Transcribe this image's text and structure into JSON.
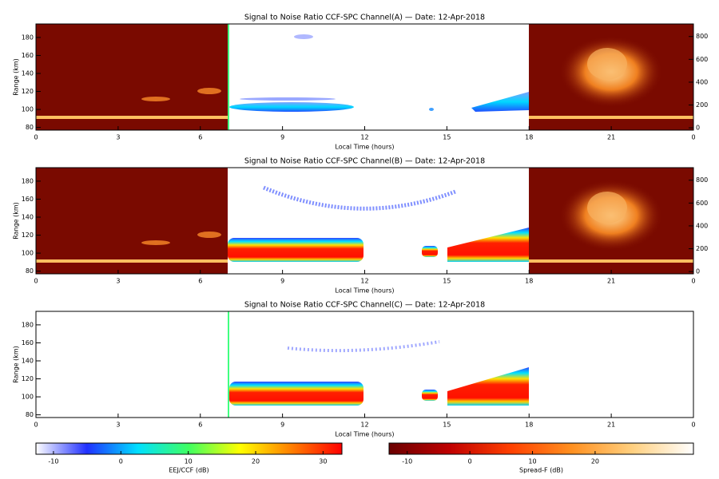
{
  "chart_data": [
    {
      "type": "heatmap",
      "title": "Signal to Noise Ratio CCF-SPC Channel(A) — Date: 12-Apr-2018",
      "x_label": "Local Time (hours)",
      "y_label": "Range (km)",
      "xlim": [
        0,
        24
      ],
      "xticks": [
        0,
        3,
        6,
        9,
        12,
        15,
        18,
        21,
        {
          "value": 24,
          "label": "0"
        }
      ],
      "ylim": [
        77,
        195
      ],
      "yticks": [
        80,
        100,
        120,
        140,
        160,
        180
      ],
      "y2lim": [
        -20,
        910
      ],
      "y2ticks": [
        0,
        200,
        400,
        600,
        800
      ]
    },
    {
      "type": "heatmap",
      "title": "Signal to Noise Ratio CCF-SPC Channel(B) — Date: 12-Apr-2018",
      "x_label": "Local Time (hours)",
      "y_label": "Range (km)",
      "xlim": [
        0,
        24
      ],
      "xticks": [
        0,
        3,
        6,
        9,
        12,
        15,
        18,
        21,
        {
          "value": 24,
          "label": "0"
        }
      ],
      "ylim": [
        77,
        195
      ],
      "yticks": [
        80,
        100,
        120,
        140,
        160,
        180
      ],
      "y2lim": [
        -20,
        910
      ],
      "y2ticks": [
        0,
        200,
        400,
        600,
        800
      ]
    },
    {
      "type": "heatmap",
      "title": "Signal to Noise Ratio CCF-SPC Channel(C) — Date: 12-Apr-2018",
      "x_label": "Local Time (hours)",
      "y_label": "Range (km)",
      "xlim": [
        0,
        24
      ],
      "xticks": [
        0,
        3,
        6,
        9,
        12,
        15,
        18,
        21,
        {
          "value": 24,
          "label": "0"
        }
      ],
      "ylim": [
        77,
        195
      ],
      "yticks": [
        80,
        100,
        120,
        140,
        160,
        180
      ]
    },
    {
      "type": "colorbar",
      "label": "EEJ/CCF (dB)",
      "xlim": [
        -12.6,
        32.8
      ],
      "xticks": [
        -10,
        0,
        10,
        20,
        30
      ],
      "colors": [
        "#ffffff",
        "#2030ff",
        "#00e0ff",
        "#40ff60",
        "#ffff00",
        "#ff8000",
        "#ff0000"
      ]
    },
    {
      "type": "colorbar",
      "label": "Spread-F (dB)",
      "xlim": [
        -12.9,
        35.7
      ],
      "xticks": [
        -10,
        0,
        10,
        20
      ],
      "colors": [
        "#6a0000",
        "#c00000",
        "#ff4000",
        "#ff9020",
        "#ffd080",
        "#ffffff"
      ]
    }
  ]
}
